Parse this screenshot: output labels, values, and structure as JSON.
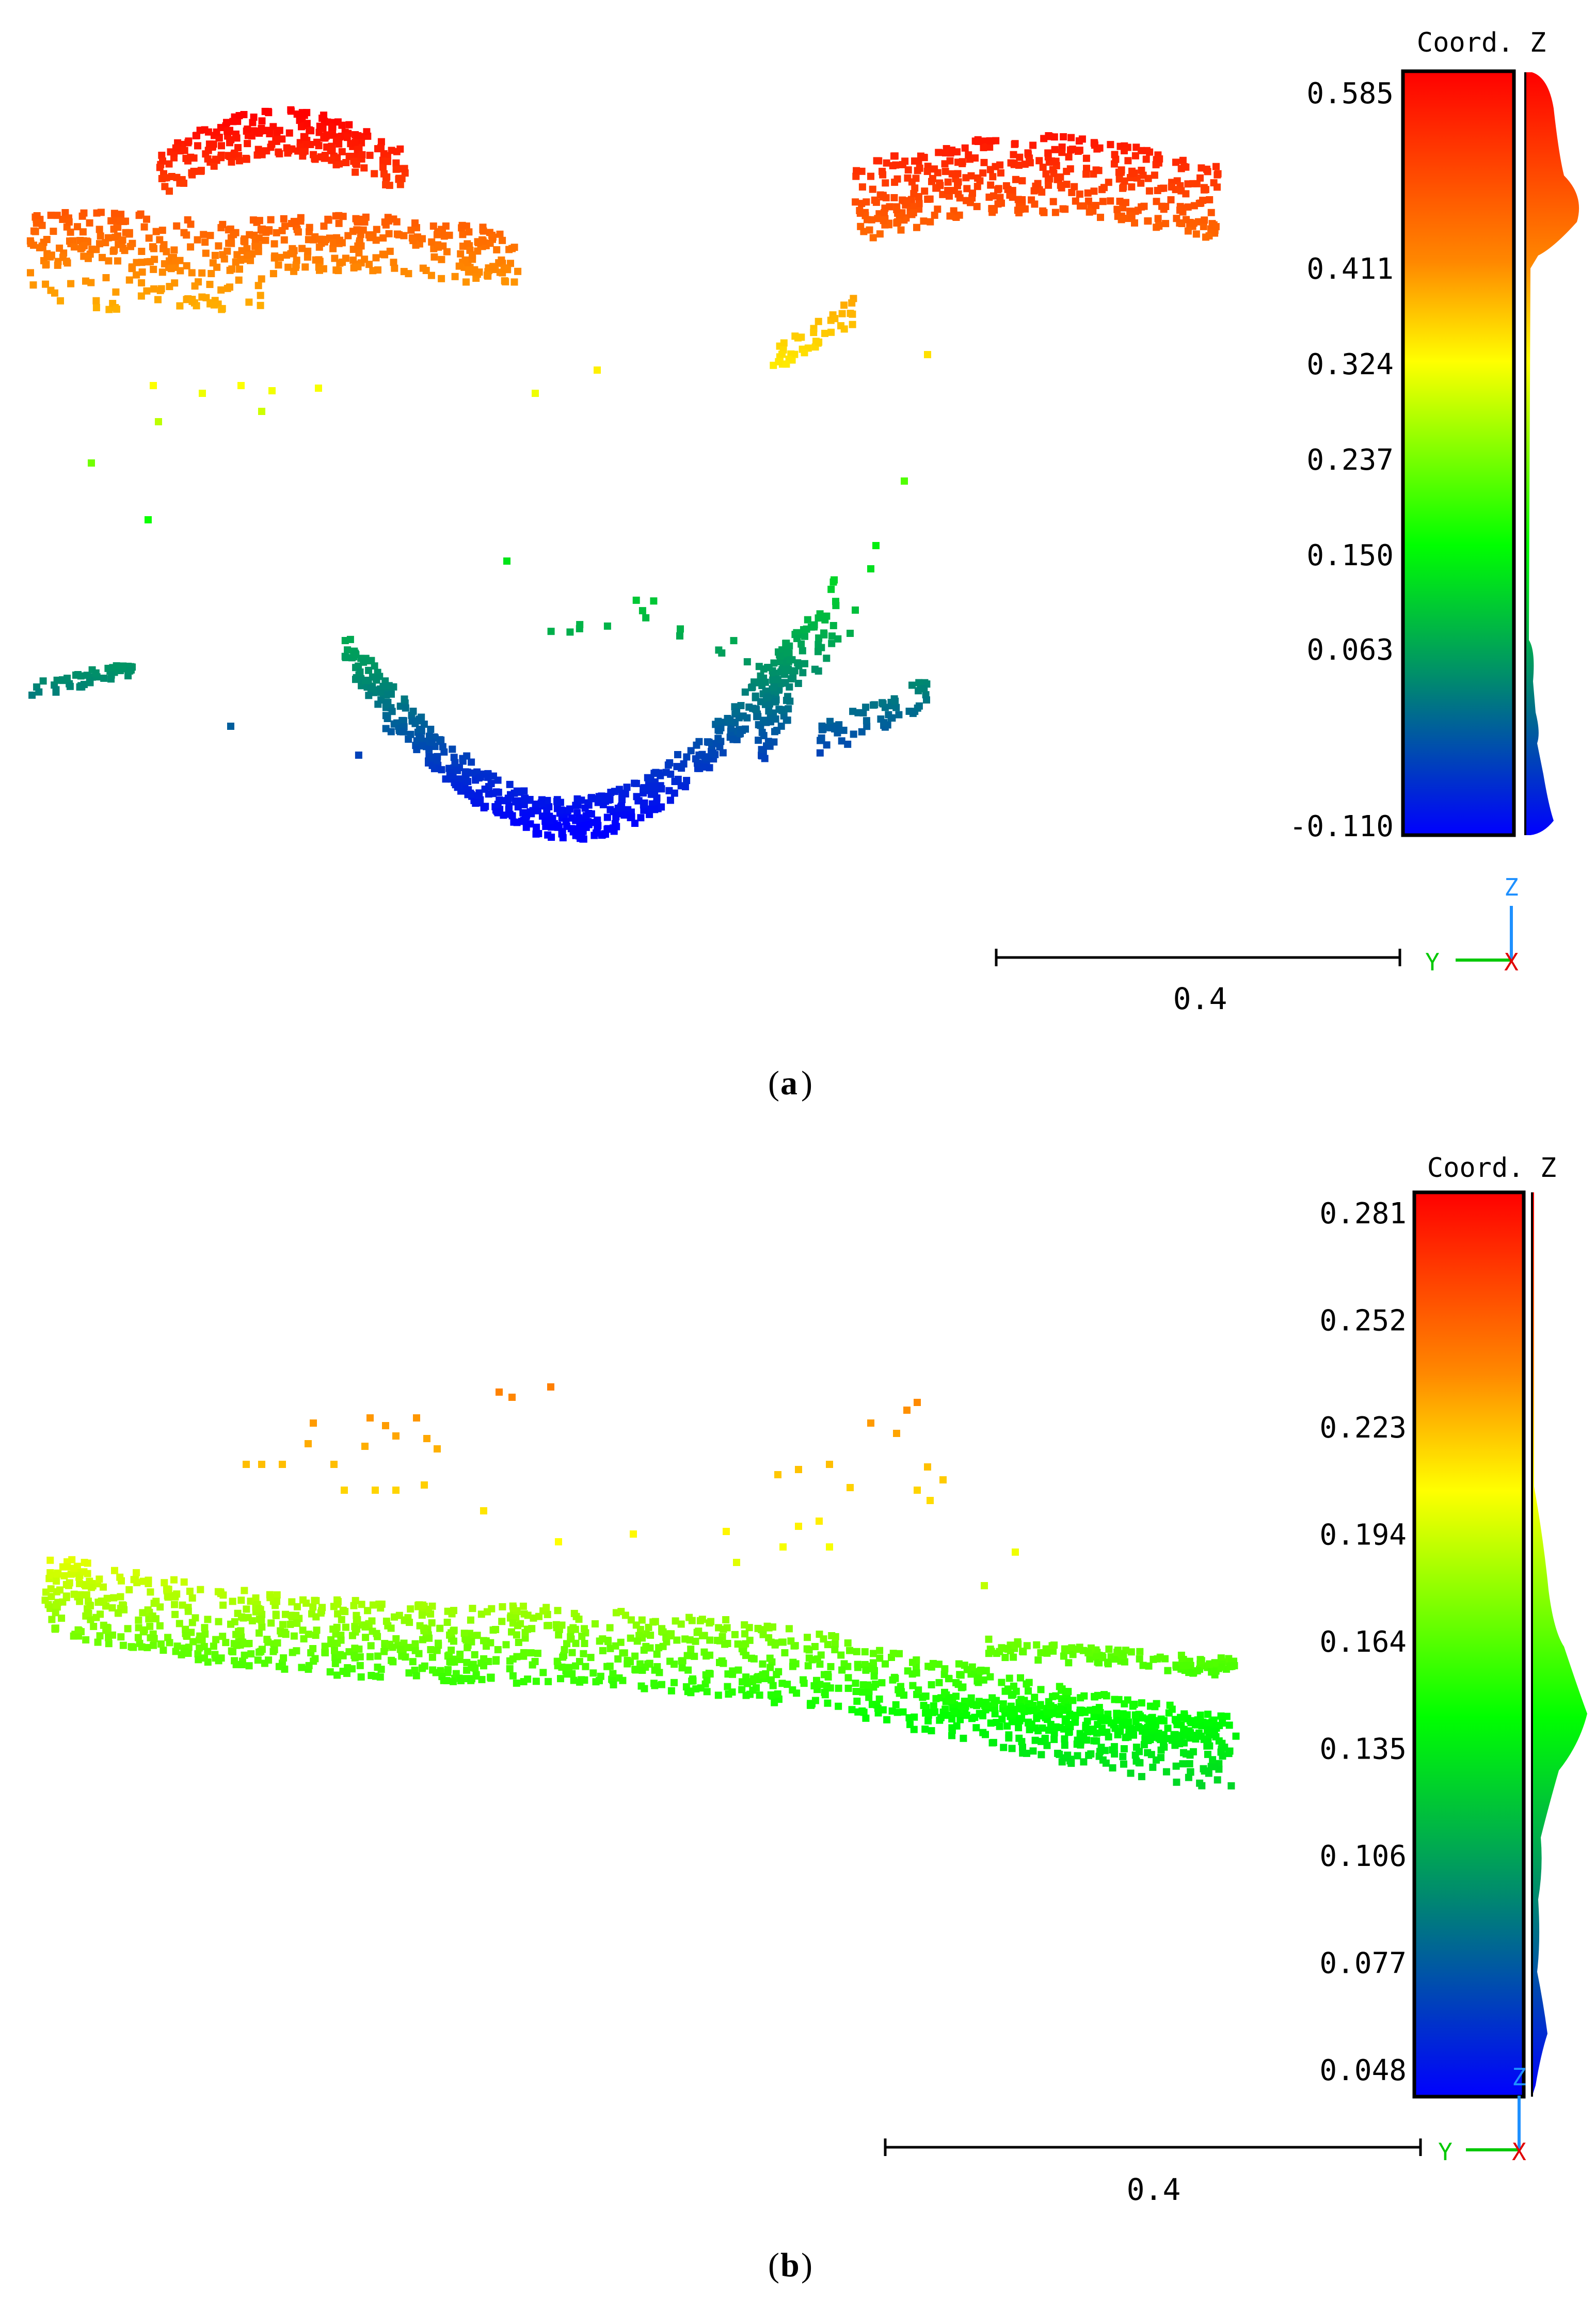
{
  "chart_data": [
    {
      "type": "scatter",
      "caption_letter": "a",
      "colorbar_title": "Coord.  Z",
      "colorbar_ticks": [
        "0.585",
        "0.411",
        "0.324",
        "0.237",
        "0.150",
        "0.063",
        "-0.110"
      ],
      "colorbar_range": [
        -0.11,
        0.585
      ],
      "scale_bar_label": "0.4",
      "axes_gizmo": {
        "z": "Z",
        "y": "Y",
        "x": "X"
      },
      "colors": {
        "high": "#ff0000",
        "mid": "#00ff00",
        "low": "#0000ff"
      }
    },
    {
      "type": "scatter",
      "caption_letter": "b",
      "colorbar_title": "Coord.  Z",
      "colorbar_ticks": [
        "0.281",
        "0.252",
        "0.223",
        "0.194",
        "0.164",
        "0.135",
        "0.106",
        "0.077",
        "0.048"
      ],
      "colorbar_range": [
        0.048,
        0.281
      ],
      "scale_bar_label": "0.4",
      "axes_gizmo": {
        "z": "Z",
        "y": "Y",
        "x": "X"
      },
      "colors": {
        "high": "#ff0000",
        "mid": "#00ff00",
        "low": "#0000ff"
      }
    }
  ]
}
